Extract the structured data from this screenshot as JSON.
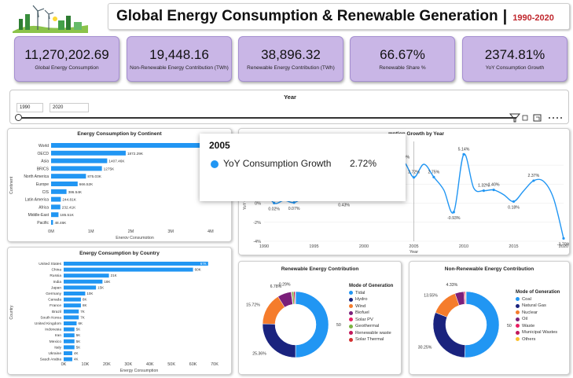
{
  "header": {
    "title": "Global Energy Consumption & Renewable Generation",
    "separator": "|",
    "years": "1990-2020"
  },
  "kpis": [
    {
      "value": "11,270,202.69",
      "label": "Global Energy Consumption"
    },
    {
      "value": "19,448.16",
      "label": "Non-Renewable Energy Contribution (TWh)"
    },
    {
      "value": "38,896.32",
      "label": "Renewable Energy Contribution (TWh)"
    },
    {
      "value": "66.67%",
      "label": "Renewable Share %"
    },
    {
      "value": "2374.81%",
      "label": "YoY Consumption Growth"
    }
  ],
  "slicer": {
    "title": "Year",
    "start": "1990",
    "end": "2020"
  },
  "colors": {
    "accent": "#2196f3",
    "kpi_bg": "#c9b6e6",
    "title_years": "#c0272d",
    "dark_blue": "#1a237e",
    "orange": "#f57c2c",
    "purple": "#7b1f7a",
    "red": "#d32f2f",
    "pink": "#e91e63",
    "green": "#7cb342",
    "magenta": "#c2185b",
    "yellow": "#fbc02d"
  },
  "tooltip": {
    "year": "2005",
    "label": "YoY Consumption Growth",
    "value": "2.72%"
  },
  "chart_data": [
    {
      "id": "continent",
      "type": "bar",
      "orientation": "horizontal",
      "title": "Energy Consumption by Continent",
      "xlabel": "Energy Consumption",
      "ylabel": "Continent",
      "categories": [
        "World",
        "OECD",
        "Asia",
        "BRICS",
        "North America",
        "Europe",
        "CIS",
        "Latin America",
        "Africa",
        "Middle-East",
        "Pacific"
      ],
      "values": [
        4110000,
        1872290,
        1407460,
        1275000,
        875030,
        666520,
        386540,
        244810,
        232410,
        185510,
        48460
      ],
      "data_labels": [
        "4.11M",
        "1872.29K",
        "1407.46K",
        "1275K",
        "875.03K",
        "666.52K",
        "386.54K",
        "244.81K",
        "232.41K",
        "185.51K",
        "48.46K"
      ],
      "x_ticks": [
        "0M",
        "1M",
        "2M",
        "3M",
        "4M"
      ],
      "xlim": [
        0,
        4200000
      ]
    },
    {
      "id": "country",
      "type": "bar",
      "orientation": "horizontal",
      "title": "Energy Consumption by Country",
      "xlabel": "Energy Consumption",
      "ylabel": "Country",
      "categories": [
        "United States",
        "China",
        "Russia",
        "India",
        "Japan",
        "Germany",
        "Canada",
        "France",
        "Brazil",
        "South Korea",
        "United Kingdom",
        "Indonesia",
        "Iran",
        "Mexico",
        "Italy",
        "Ukraine",
        "Saudi Arabia"
      ],
      "values": [
        67000,
        60000,
        21000,
        18000,
        15000,
        10000,
        8000,
        8000,
        7000,
        7000,
        6000,
        5000,
        5000,
        5000,
        5000,
        4000,
        4000
      ],
      "data_labels": [
        "67K",
        "60K",
        "21K",
        "18K",
        "15K",
        "10K",
        "8K",
        "8K",
        "7K",
        "7K",
        "6K",
        "5K",
        "5K",
        "5K",
        "5K",
        "4K",
        "4K"
      ],
      "x_ticks": [
        "0K",
        "10K",
        "20K",
        "30K",
        "40K",
        "50K",
        "60K",
        "70K"
      ],
      "xlim": [
        0,
        70000
      ]
    },
    {
      "id": "growth",
      "type": "line",
      "title": "YoY Consumption Growth by Year",
      "title_visible": "mption Growth by Year",
      "xlabel": "Year",
      "ylabel": "YoY Consumption",
      "x": [
        1990,
        1991,
        1992,
        1993,
        1994,
        1995,
        1996,
        1997,
        1998,
        1999,
        2000,
        2001,
        2002,
        2003,
        2004,
        2005,
        2006,
        2007,
        2008,
        2009,
        2010,
        2011,
        2012,
        2013,
        2014,
        2015,
        2016,
        2017,
        2018,
        2019,
        2020
      ],
      "y": [
        1.5,
        0.02,
        0.3,
        0.07,
        0.77,
        2.1,
        3.3,
        1.6,
        0.43,
        0.9,
        3.5,
        0.74,
        1.2,
        3.2,
        4.3,
        2.72,
        4.1,
        2.75,
        1.4,
        -0.93,
        5.14,
        1.6,
        1.32,
        1.4,
        0.9,
        0.18,
        1.3,
        2.37,
        2.3,
        0.5,
        -3.7
      ],
      "point_labels": {
        "1991": "0.02%",
        "1993": "0.07%",
        "1994": "0.77%",
        "1998": "0.43%",
        "2001": "0.74%",
        "2004": "4.30%",
        "2005": "2.72%",
        "2007": "2.75%",
        "2009": "-0.93%",
        "2010": "5.14%",
        "2012": "1.32%",
        "2013": "1.40%",
        "2015": "0.18%",
        "2017": "2.37%",
        "2020": "-3.70%"
      },
      "x_ticks": [
        "1990",
        "1995",
        "2000",
        "2005",
        "2010",
        "2015",
        "2020"
      ],
      "y_ticks": [
        "-4%",
        "-2%",
        "0%",
        "2%"
      ],
      "ylim": [
        -4,
        6
      ]
    },
    {
      "id": "renewable",
      "type": "pie",
      "donut": true,
      "title": "Renewable Energy Contribution",
      "legend_title": "Mode of Generation",
      "labels": [
        "Tidal",
        "Hydro",
        "Wind",
        "Biofuel",
        "Solar PV",
        "Geothermal",
        "Renewable waste",
        "Solar Thermal"
      ],
      "values": [
        50,
        25.36,
        15.72,
        6.78,
        0.29,
        0.95,
        0.6,
        0.3
      ],
      "slice_labels": [
        "50%",
        "25.36%",
        "15.72%",
        "6.78%",
        "0.29%",
        "",
        "",
        ""
      ],
      "colors": [
        "#2196f3",
        "#1a237e",
        "#f57c2c",
        "#7b1f7a",
        "#e91e63",
        "#7cb342",
        "#c2185b",
        "#d32f2f"
      ]
    },
    {
      "id": "nonrenewable",
      "type": "pie",
      "donut": true,
      "title": "Non-Renewable Energy Contribution",
      "legend_title": "Mode of Generation",
      "labels": [
        "Coal",
        "Natural Gas",
        "Nuclear",
        "Oil",
        "Waste",
        "Municipal Wastes",
        "Others"
      ],
      "values": [
        50.72,
        30.25,
        13.55,
        4.33,
        0.5,
        0.4,
        0.25
      ],
      "slice_labels": [
        "50.72%",
        "30.25%",
        "13.55%",
        "4.33%",
        "",
        "",
        ""
      ],
      "colors": [
        "#2196f3",
        "#1a237e",
        "#f57c2c",
        "#7b1f7a",
        "#e91e63",
        "#c2185b",
        "#fbc02d"
      ]
    }
  ]
}
